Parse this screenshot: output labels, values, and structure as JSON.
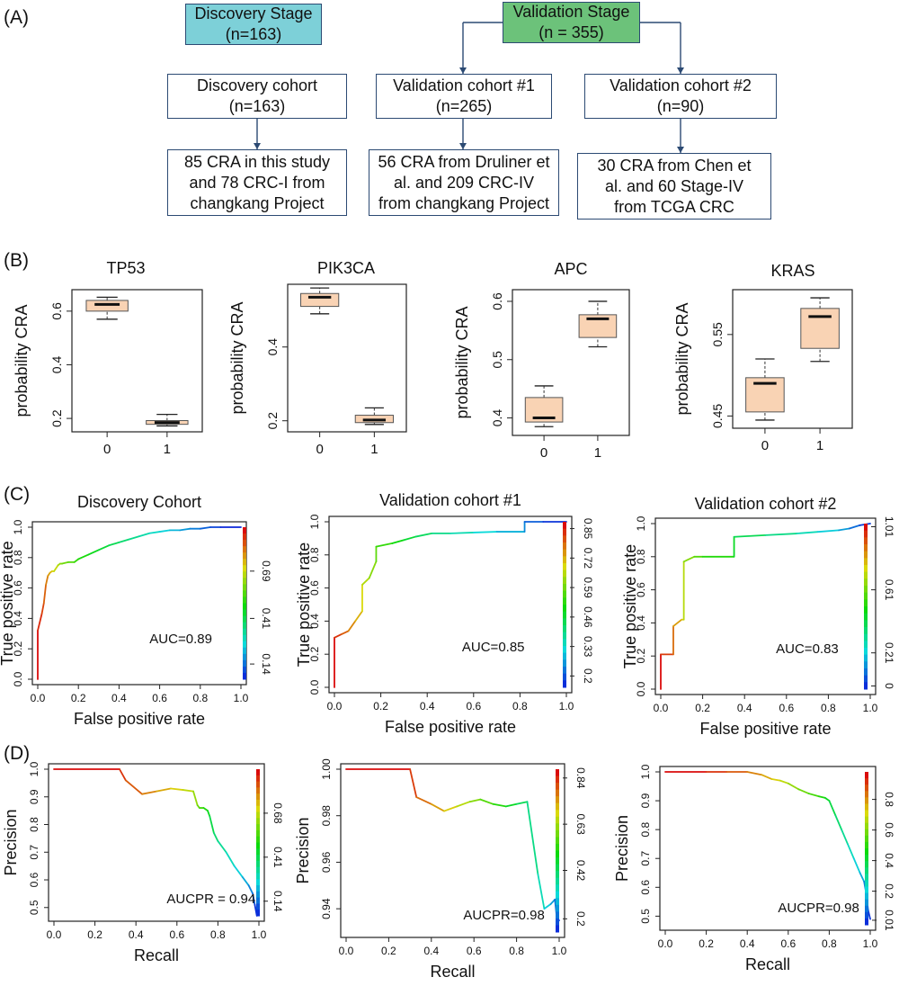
{
  "panels": {
    "a": {
      "letter": "(A)",
      "discovery_stage": {
        "title": "Discovery Stage",
        "n": "(n=163)",
        "color": "#7dd0d8"
      },
      "validation_stage": {
        "title": "Validation Stage",
        "n": "(n = 355)",
        "color": "#6cc27a"
      },
      "discovery_cohort": {
        "title": "Discovery cohort",
        "n": "(n=163)",
        "desc": "85 CRA in this study\nand 78 CRC-I from\nchangkang Project"
      },
      "validation_cohort_1": {
        "title": "Validation cohort #1",
        "n": "(n=265)",
        "desc": "56 CRA from Druliner et\nal.  and 209 CRC-IV\nfrom changkang Project"
      },
      "validation_cohort_2": {
        "title": "Validation cohort #2",
        "n": "(n=90)",
        "desc": "30 CRA from Chen et\nal. and 60 Stage-IV\nfrom TCGA CRC"
      }
    },
    "b": {
      "letter": "(B)"
    },
    "c": {
      "letter": "(C)"
    },
    "d": {
      "letter": "(D)"
    }
  },
  "colors": {
    "box_fill": "#f9d3b4",
    "box_line": "#555555",
    "median": "#111111",
    "flow_line": "#2c4a73"
  },
  "chart_data": [
    {
      "type": "box",
      "panel": "B",
      "title": "TP53",
      "ylabel": "probability CRA",
      "categories": [
        "0",
        "1"
      ],
      "ylim": [
        0.15,
        0.68
      ],
      "yticks": [
        0.2,
        0.4,
        0.6
      ],
      "boxes": [
        {
          "whisker_low": 0.57,
          "q1": 0.6,
          "median": 0.625,
          "q3": 0.64,
          "whisker_high": 0.652
        },
        {
          "whisker_low": 0.172,
          "q1": 0.178,
          "median": 0.185,
          "q3": 0.192,
          "whisker_high": 0.215
        }
      ]
    },
    {
      "type": "box",
      "panel": "B",
      "title": "PIK3CA",
      "ylabel": "probability CRA",
      "categories": [
        "0",
        "1"
      ],
      "ylim": [
        0.17,
        0.57
      ],
      "yticks": [
        0.2,
        0.4
      ],
      "boxes": [
        {
          "whisker_low": 0.49,
          "q1": 0.51,
          "median": 0.535,
          "q3": 0.545,
          "whisker_high": 0.56
        },
        {
          "whisker_low": 0.19,
          "q1": 0.195,
          "median": 0.202,
          "q3": 0.215,
          "whisker_high": 0.235
        }
      ]
    },
    {
      "type": "box",
      "panel": "B",
      "title": "APC",
      "ylabel": "probability CRA",
      "categories": [
        "0",
        "1"
      ],
      "ylim": [
        0.37,
        0.62
      ],
      "yticks": [
        0.4,
        0.5,
        0.6
      ],
      "boxes": [
        {
          "whisker_low": 0.385,
          "q1": 0.393,
          "median": 0.4,
          "q3": 0.435,
          "whisker_high": 0.455
        },
        {
          "whisker_low": 0.522,
          "q1": 0.538,
          "median": 0.57,
          "q3": 0.577,
          "whisker_high": 0.6
        }
      ]
    },
    {
      "type": "box",
      "panel": "B",
      "title": "KRAS",
      "ylabel": "probability CRA",
      "categories": [
        "0",
        "1"
      ],
      "ylim": [
        0.435,
        0.605
      ],
      "yticks": [
        0.45,
        0.55
      ],
      "boxes": [
        {
          "whisker_low": 0.445,
          "q1": 0.455,
          "median": 0.49,
          "q3": 0.497,
          "whisker_high": 0.52
        },
        {
          "whisker_low": 0.517,
          "q1": 0.533,
          "median": 0.572,
          "q3": 0.582,
          "whisker_high": 0.595
        }
      ]
    },
    {
      "type": "line",
      "panel": "C",
      "title": "Discovery Cohort",
      "xlabel": "False positive rate",
      "ylabel": "True positive rate",
      "xlim": [
        0,
        1.0
      ],
      "ylim": [
        0,
        1.0
      ],
      "xticks": [
        0.0,
        0.2,
        0.4,
        0.6,
        0.8,
        1.0
      ],
      "yticks": [
        0.0,
        0.2,
        0.4,
        0.6,
        0.8,
        1.0
      ],
      "annotation": "AUC=0.89",
      "colorbar_ticks": [
        "0.14",
        "0.41",
        "0.69"
      ],
      "colorbar_values": [
        0.14,
        0.41,
        0.69
      ],
      "colorbar_range": [
        0.05,
        0.95
      ],
      "x": [
        0,
        0,
        0.02,
        0.03,
        0.04,
        0.05,
        0.06,
        0.07,
        0.08,
        0.1,
        0.11,
        0.12,
        0.15,
        0.18,
        0.2,
        0.25,
        0.3,
        0.35,
        0.4,
        0.45,
        0.5,
        0.55,
        0.6,
        0.65,
        0.7,
        0.75,
        0.8,
        0.85,
        0.9,
        1.0
      ],
      "y": [
        0,
        0.32,
        0.43,
        0.5,
        0.62,
        0.68,
        0.7,
        0.71,
        0.71,
        0.75,
        0.76,
        0.76,
        0.77,
        0.77,
        0.79,
        0.82,
        0.85,
        0.88,
        0.9,
        0.92,
        0.94,
        0.96,
        0.97,
        0.98,
        0.98,
        0.99,
        0.99,
        1.0,
        1.0,
        1.0
      ]
    },
    {
      "type": "line",
      "panel": "C",
      "title": "Validation cohort #1",
      "xlabel": "False positive rate",
      "ylabel": "True positive rate",
      "xlim": [
        0,
        1.0
      ],
      "ylim": [
        0,
        1.0
      ],
      "xticks": [
        0.0,
        0.2,
        0.4,
        0.6,
        0.8,
        1.0
      ],
      "yticks": [
        0.0,
        0.2,
        0.4,
        0.6,
        0.8,
        1.0
      ],
      "annotation": "AUC=0.85",
      "colorbar_ticks": [
        "0.2",
        "0.33",
        "0.46",
        "0.59",
        "0.72",
        "0.85"
      ],
      "colorbar_values": [
        0.2,
        0.33,
        0.46,
        0.59,
        0.72,
        0.85
      ],
      "colorbar_range": [
        0.15,
        0.88
      ],
      "x": [
        0,
        0,
        0.03,
        0.06,
        0.09,
        0.12,
        0.12,
        0.15,
        0.18,
        0.18,
        0.25,
        0.3,
        0.35,
        0.42,
        0.5,
        0.6,
        0.7,
        0.82,
        0.82,
        0.9,
        1.0
      ],
      "y": [
        0,
        0.3,
        0.32,
        0.34,
        0.4,
        0.46,
        0.62,
        0.66,
        0.76,
        0.85,
        0.87,
        0.89,
        0.91,
        0.93,
        0.93,
        0.935,
        0.94,
        0.94,
        1.0,
        1.0,
        1.0
      ]
    },
    {
      "type": "line",
      "panel": "C",
      "title": "Validation cohort #2",
      "xlabel": "False positive rate",
      "ylabel": "True positive rate",
      "xlim": [
        0,
        1.0
      ],
      "ylim": [
        0,
        1.0
      ],
      "xticks": [
        0.0,
        0.2,
        0.4,
        0.6,
        0.8,
        1.0
      ],
      "yticks": [
        0.0,
        0.2,
        0.4,
        0.6,
        0.8,
        1.0
      ],
      "annotation": "AUC=0.83",
      "colorbar_ticks": [
        "0",
        "0.21",
        "0.61",
        "1.01"
      ],
      "colorbar_values": [
        0,
        0.21,
        0.61,
        1.01
      ],
      "colorbar_range": [
        -0.02,
        1.03
      ],
      "x": [
        0,
        0,
        0.06,
        0.06,
        0.1,
        0.11,
        0.11,
        0.16,
        0.2,
        0.35,
        0.35,
        0.5,
        0.65,
        0.75,
        0.85,
        0.9,
        0.95,
        1.0
      ],
      "y": [
        0,
        0.21,
        0.21,
        0.38,
        0.42,
        0.42,
        0.77,
        0.8,
        0.8,
        0.8,
        0.92,
        0.93,
        0.94,
        0.95,
        0.96,
        0.97,
        0.99,
        1.0
      ]
    },
    {
      "type": "line",
      "panel": "D",
      "title": "",
      "xlabel": "Recall",
      "ylabel": "Precision",
      "xlim": [
        0,
        1.0
      ],
      "ylim": [
        0.47,
        1.0
      ],
      "xticks": [
        0.0,
        0.2,
        0.4,
        0.6,
        0.8,
        1.0
      ],
      "yticks": [
        0.5,
        0.6,
        0.7,
        0.8,
        0.9,
        1.0
      ],
      "annotation": "AUCPR = 0.94",
      "colorbar_ticks": [
        "0.14",
        "0.41",
        "0.68"
      ],
      "colorbar_values": [
        0.14,
        0.41,
        0.68
      ],
      "colorbar_range": [
        0.05,
        0.95
      ],
      "x": [
        0,
        0.32,
        0.35,
        0.43,
        0.5,
        0.57,
        0.63,
        0.68,
        0.7,
        0.71,
        0.73,
        0.75,
        0.76,
        0.78,
        0.8,
        0.84,
        0.88,
        0.92,
        0.95,
        0.97,
        0.98,
        0.99
      ],
      "y": [
        1.0,
        1.0,
        0.96,
        0.91,
        0.92,
        0.93,
        0.925,
        0.92,
        0.87,
        0.86,
        0.86,
        0.85,
        0.83,
        0.77,
        0.74,
        0.7,
        0.65,
        0.61,
        0.58,
        0.55,
        0.51,
        0.47
      ]
    },
    {
      "type": "line",
      "panel": "D",
      "title": "",
      "xlabel": "Recall",
      "ylabel": "Precision",
      "xlim": [
        0,
        1.0
      ],
      "ylim": [
        0.93,
        1.0
      ],
      "xticks": [
        0.0,
        0.2,
        0.4,
        0.6,
        0.8,
        1.0
      ],
      "yticks": [
        0.94,
        0.96,
        0.98,
        1.0
      ],
      "annotation": "AUCPR=0.98",
      "colorbar_ticks": [
        "0.2",
        "0.42",
        "0.63",
        "0.84"
      ],
      "colorbar_values": [
        0.2,
        0.42,
        0.63,
        0.84
      ],
      "colorbar_range": [
        0.14,
        0.88
      ],
      "x": [
        0,
        0.3,
        0.33,
        0.4,
        0.46,
        0.52,
        0.58,
        0.63,
        0.69,
        0.75,
        0.8,
        0.85,
        0.9,
        0.93,
        0.96,
        0.98,
        0.99,
        1.0
      ],
      "y": [
        1.0,
        1.0,
        0.988,
        0.985,
        0.982,
        0.984,
        0.986,
        0.987,
        0.985,
        0.984,
        0.985,
        0.986,
        0.955,
        0.94,
        0.942,
        0.944,
        0.935,
        0.935
      ]
    },
    {
      "type": "line",
      "panel": "D",
      "title": "",
      "xlabel": "Recall",
      "ylabel": "Precision",
      "xlim": [
        0,
        1.0
      ],
      "ylim": [
        0.47,
        1.0
      ],
      "xticks": [
        0.0,
        0.2,
        0.4,
        0.6,
        0.8,
        1.0
      ],
      "yticks": [
        0.5,
        0.6,
        0.7,
        0.8,
        0.9,
        1.0
      ],
      "annotation": "AUCPR=0.98",
      "colorbar_ticks": [
        "0.01",
        "0.2",
        "0.4",
        "0.6",
        "0.8"
      ],
      "colorbar_values": [
        0.01,
        0.2,
        0.4,
        0.6,
        0.8
      ],
      "colorbar_range": [
        -0.02,
        0.98
      ],
      "x": [
        0,
        0.2,
        0.3,
        0.4,
        0.47,
        0.52,
        0.56,
        0.6,
        0.65,
        0.7,
        0.75,
        0.78,
        0.8,
        0.83,
        0.86,
        0.89,
        0.92,
        0.95,
        0.97,
        0.98,
        0.99,
        1.0
      ],
      "y": [
        1.0,
        1.0,
        1.0,
        1.0,
        0.99,
        0.975,
        0.97,
        0.96,
        0.94,
        0.925,
        0.915,
        0.91,
        0.9,
        0.85,
        0.8,
        0.75,
        0.7,
        0.65,
        0.62,
        0.58,
        0.52,
        0.49
      ]
    }
  ]
}
